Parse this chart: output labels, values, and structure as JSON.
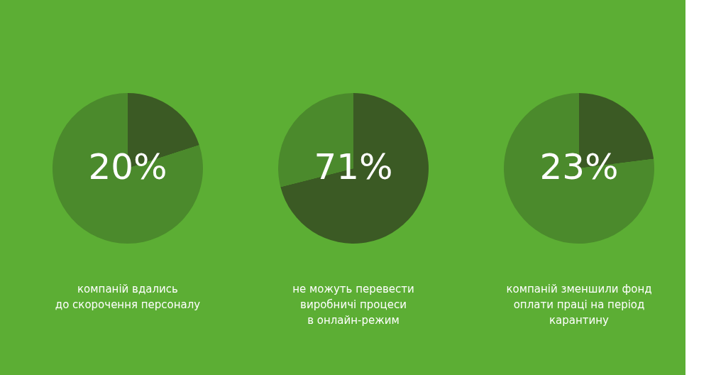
{
  "chart_data": [
    {
      "type": "pie",
      "categories": [
        null,
        null
      ],
      "values": [
        20,
        80
      ],
      "colors": [
        "#3b5a24",
        "#4b8a2c"
      ],
      "value_labels": [
        "20%",
        null
      ],
      "annotations": [
        "компаній вдались\nдо скорочення персоналу"
      ]
    },
    {
      "type": "pie",
      "categories": [
        null,
        null
      ],
      "values": [
        71,
        29
      ],
      "colors": [
        "#3b5a24",
        "#4b8a2c"
      ],
      "value_labels": [
        "71%",
        null
      ],
      "annotations": [
        "не можуть перевести\nвиробничі процеси\nв онлайн-режим"
      ]
    },
    {
      "type": "pie",
      "categories": [
        null,
        null
      ],
      "values": [
        23,
        77
      ],
      "colors": [
        "#3b5a24",
        "#4b8a2c"
      ],
      "value_labels": [
        "23%",
        null
      ],
      "annotations": [
        "компаній зменшили фонд\nоплати праці на період\nкарантину"
      ]
    }
  ]
}
